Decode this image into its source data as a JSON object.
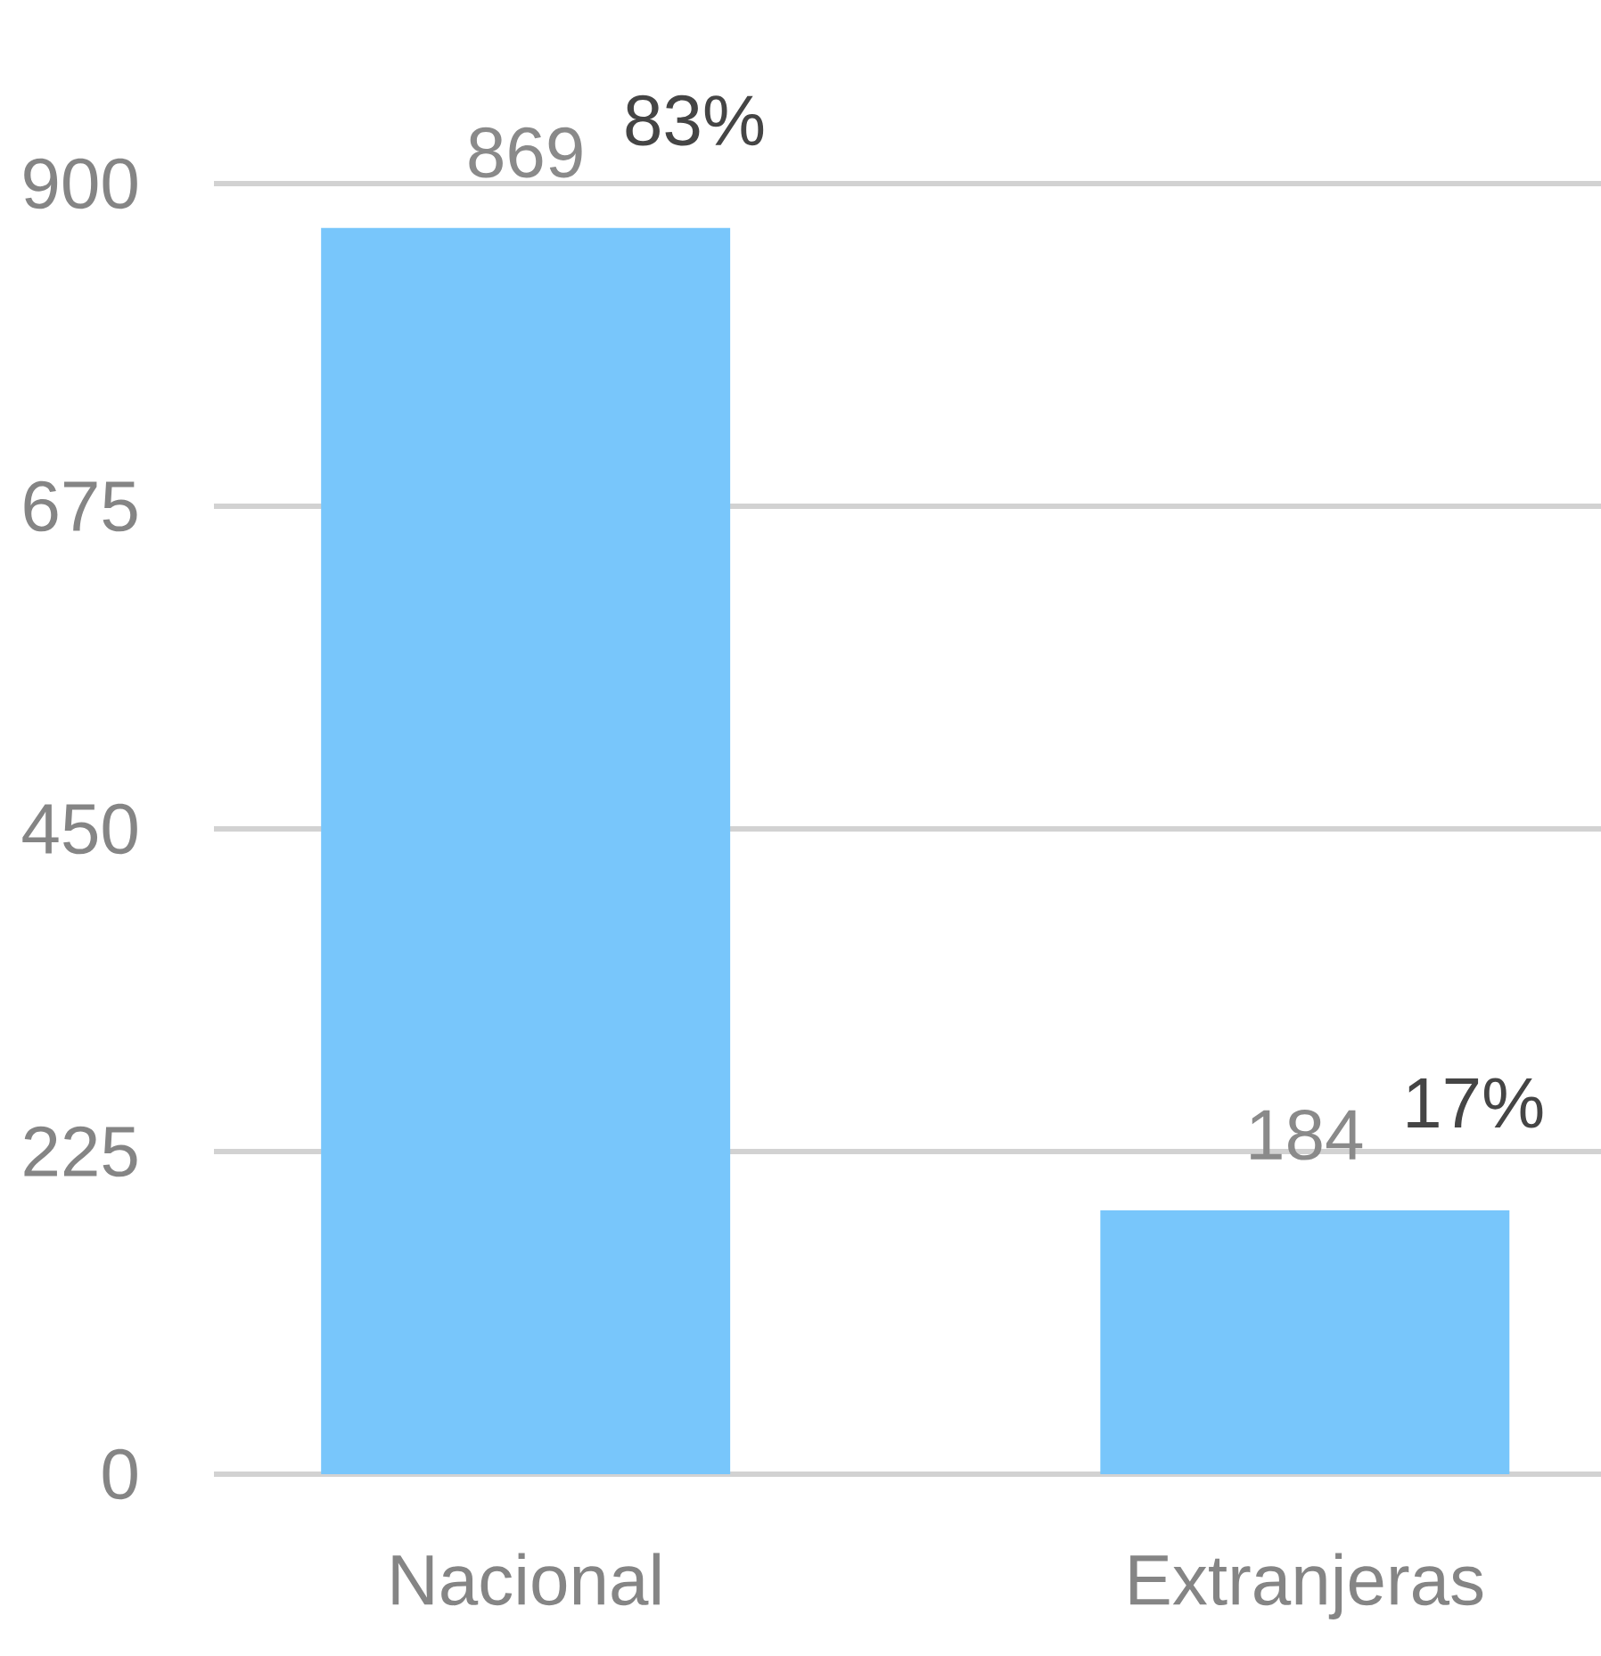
{
  "chart_data": {
    "type": "bar",
    "categories": [
      "Nacional",
      "Extranjeras"
    ],
    "values": [
      869,
      184
    ],
    "color": "#78c6fb",
    "ylim": [
      0,
      900
    ],
    "yticks": [
      0,
      225,
      450,
      675,
      900
    ],
    "grid": "y",
    "data_labels": true,
    "annotations": [
      {
        "text": "83%",
        "x": "Nacional",
        "y": 869
      },
      {
        "text": "17%",
        "x": "Extranjeras",
        "y": 184
      }
    ]
  }
}
